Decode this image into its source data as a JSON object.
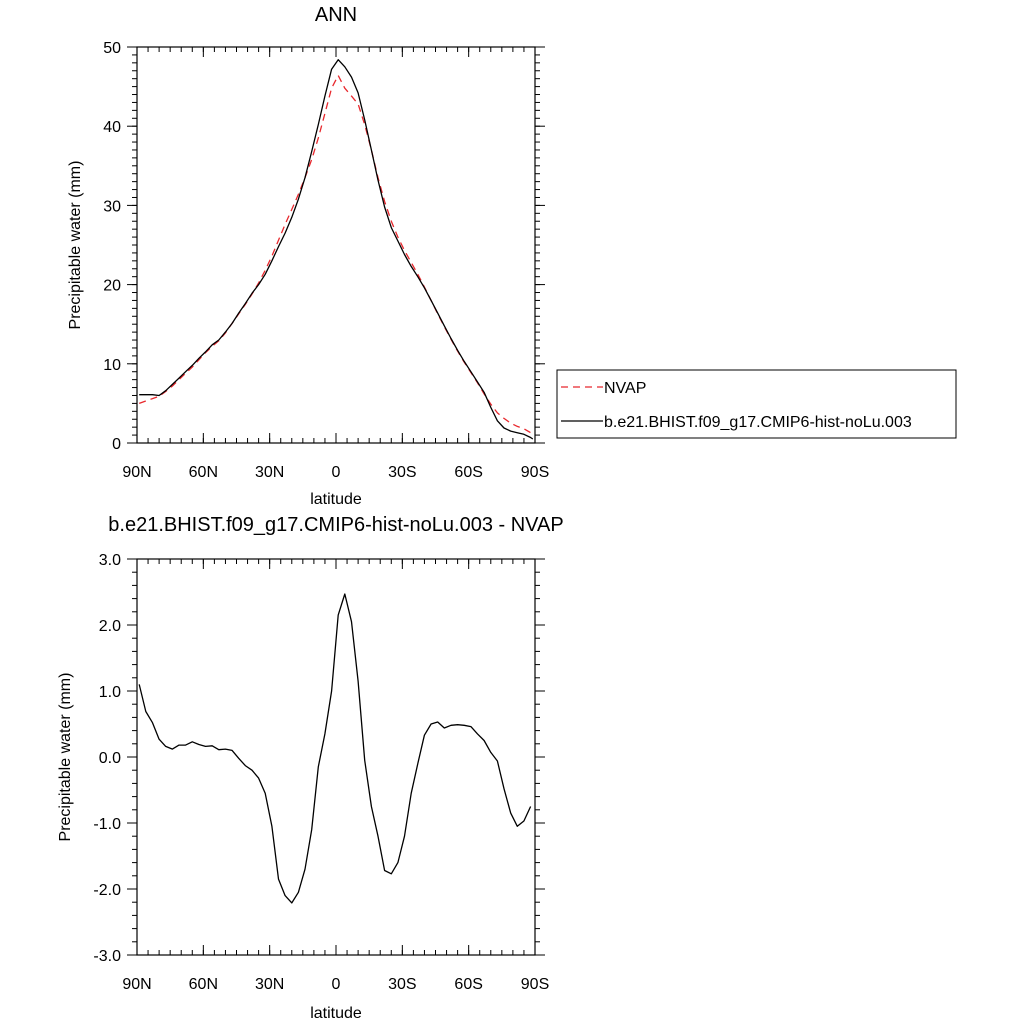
{
  "chart_data": [
    {
      "type": "line",
      "title": "ANN",
      "xlabel": "latitude",
      "ylabel": "Precipitable water (mm)",
      "xlim": [
        90,
        -90
      ],
      "ylim": [
        0,
        50
      ],
      "x_ticks": [
        90,
        60,
        30,
        0,
        -30,
        -60,
        -90
      ],
      "x_tick_labels": [
        "90N",
        "60N",
        "30N",
        "0",
        "30S",
        "60S",
        "90S"
      ],
      "y_ticks": [
        0,
        10,
        20,
        30,
        40,
        50
      ],
      "y_tick_labels": [
        "0",
        "10",
        "20",
        "30",
        "40",
        "50"
      ],
      "grid": false,
      "legend_position": "right",
      "series": [
        {
          "name": "NVAP",
          "color": "#e8282d",
          "dash": "dashed",
          "x": [
            89,
            86,
            83,
            80,
            77,
            74,
            71,
            68,
            65,
            62,
            59,
            56,
            53,
            50,
            47,
            44,
            41,
            38,
            35,
            32,
            29,
            26,
            23,
            20,
            17,
            14,
            11,
            8,
            5,
            2,
            -1,
            -4,
            -7,
            -10,
            -13,
            -16,
            -19,
            -22,
            -25,
            -28,
            -31,
            -34,
            -37,
            -40,
            -43,
            -46,
            -49,
            -52,
            -55,
            -58,
            -61,
            -64,
            -67,
            -70,
            -73,
            -76,
            -79,
            -82,
            -85,
            -88,
            -89
          ],
          "y": [
            5.0,
            5.3,
            5.6,
            5.9,
            6.5,
            7.2,
            8.0,
            8.8,
            9.6,
            10.5,
            11.4,
            12.2,
            12.9,
            13.9,
            15.1,
            16.3,
            17.5,
            18.8,
            20.2,
            21.8,
            23.6,
            25.6,
            27.6,
            29.5,
            31.4,
            33.5,
            35.8,
            38.5,
            41.6,
            44.8,
            46.4,
            44.8,
            43.8,
            42.8,
            40.2,
            37.0,
            33.5,
            30.5,
            28.0,
            26.0,
            24.3,
            22.8,
            21.3,
            19.7,
            18.0,
            16.3,
            14.7,
            13.1,
            11.6,
            10.2,
            8.9,
            7.6,
            6.2,
            4.9,
            3.8,
            3.1,
            2.5,
            2.1,
            1.8,
            1.3,
            1.0
          ]
        },
        {
          "name": "b.e21.BHIST.f09_g17.CMIP6-hist-noLu.003",
          "color": "#000000",
          "dash": "solid",
          "x": [
            89,
            86,
            83,
            80,
            77,
            74,
            71,
            68,
            65,
            62,
            59,
            56,
            53,
            50,
            47,
            44,
            41,
            38,
            35,
            32,
            29,
            26,
            23,
            20,
            17,
            14,
            11,
            8,
            5,
            2,
            -1,
            -4,
            -7,
            -10,
            -13,
            -16,
            -19,
            -22,
            -25,
            -28,
            -31,
            -34,
            -37,
            -40,
            -43,
            -46,
            -49,
            -52,
            -55,
            -58,
            -61,
            -64,
            -67,
            -70,
            -73,
            -76,
            -79,
            -82,
            -85,
            -88,
            -89
          ],
          "y": [
            6.1,
            6.1,
            6.1,
            6.0,
            6.6,
            7.4,
            8.2,
            9.0,
            9.8,
            10.7,
            11.5,
            12.4,
            13.0,
            14.0,
            15.1,
            16.4,
            17.6,
            18.9,
            20.0,
            21.3,
            23.0,
            24.8,
            26.5,
            28.5,
            30.8,
            33.5,
            36.8,
            40.2,
            43.8,
            47.2,
            48.4,
            47.5,
            46.2,
            44.2,
            40.8,
            37.0,
            33.2,
            29.8,
            27.2,
            25.5,
            23.8,
            22.3,
            21.0,
            19.6,
            18.0,
            16.4,
            14.8,
            13.2,
            11.7,
            10.3,
            9.0,
            7.7,
            6.4,
            4.5,
            2.8,
            1.9,
            1.5,
            1.3,
            1.1,
            0.7,
            0.5
          ]
        }
      ]
    },
    {
      "type": "line",
      "title": "b.e21.BHIST.f09_g17.CMIP6-hist-noLu.003 - NVAP",
      "xlabel": "latitude",
      "ylabel": "Precipitable water (mm)",
      "xlim": [
        90,
        -90
      ],
      "ylim": [
        -3.0,
        3.0
      ],
      "x_ticks": [
        90,
        60,
        30,
        0,
        -30,
        -60,
        -90
      ],
      "x_tick_labels": [
        "90N",
        "60N",
        "30N",
        "0",
        "30S",
        "60S",
        "90S"
      ],
      "y_ticks": [
        3,
        2,
        1,
        0,
        -1,
        -2,
        -3
      ],
      "y_tick_labels": [
        "3.0",
        "2.0",
        "1.0",
        "0.0",
        "-1.0",
        "-2.0",
        "-3.0"
      ],
      "grid": false,
      "series": [
        {
          "color": "#000000",
          "dash": "solid",
          "x": [
            89,
            86,
            83,
            80,
            77,
            74,
            71,
            68,
            65,
            62,
            59,
            56,
            53,
            50,
            47,
            44,
            41,
            38,
            35,
            32,
            29,
            26,
            23,
            20,
            17,
            14,
            11,
            8,
            5,
            2,
            -1,
            -4,
            -7,
            -10,
            -13,
            -16,
            -19,
            -22,
            -25,
            -28,
            -31,
            -34,
            -37,
            -40,
            -43,
            -46,
            -49,
            -52,
            -55,
            -58,
            -61,
            -64,
            -67,
            -70,
            -73,
            -76,
            -79,
            -82,
            -85,
            -88
          ],
          "y": [
            1.1,
            0.69,
            0.52,
            0.27,
            0.16,
            0.12,
            0.18,
            0.18,
            0.23,
            0.19,
            0.16,
            0.17,
            0.11,
            0.12,
            0.1,
            -0.02,
            -0.13,
            -0.2,
            -0.32,
            -0.55,
            -1.05,
            -1.85,
            -2.1,
            -2.21,
            -2.05,
            -1.7,
            -1.1,
            -0.15,
            0.35,
            1.0,
            2.15,
            2.47,
            2.05,
            1.15,
            -0.05,
            -0.75,
            -1.2,
            -1.72,
            -1.77,
            -1.6,
            -1.2,
            -0.55,
            -0.1,
            0.33,
            0.5,
            0.53,
            0.44,
            0.48,
            0.49,
            0.48,
            0.46,
            0.35,
            0.25,
            0.07,
            -0.06,
            -0.48,
            -0.85,
            -1.05,
            -0.97,
            -0.75
          ]
        }
      ]
    }
  ]
}
